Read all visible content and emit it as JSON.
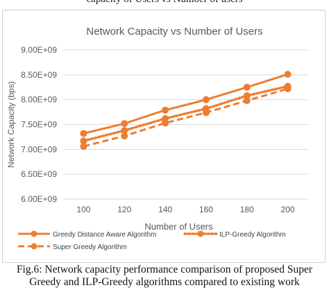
{
  "header_fragment": "capacity of Users vs Number of users",
  "caption": {
    "line1": "Fig.6: Network capacity performance comparison of proposed Super",
    "line2": "Greedy and  ILP-Greedy algorithms compared to existing work"
  },
  "chart_data": {
    "type": "line",
    "title": "Network Capacity vs Number of Users",
    "xlabel": "Number of Users",
    "ylabel": "Network Capacity (bps)",
    "x": [
      100,
      120,
      140,
      160,
      180,
      200
    ],
    "ylim": [
      6000000000,
      9000000000
    ],
    "yticks": [
      6000000000,
      6500000000,
      7000000000,
      7500000000,
      8000000000,
      8500000000,
      9000000000
    ],
    "ytick_labels": [
      "6.00E+09",
      "6.50E+09",
      "7.00E+09",
      "7.50E+09",
      "8.00E+09",
      "8.50E+09",
      "9.00E+09"
    ],
    "grid": true,
    "legend_position": "bottom",
    "series": [
      {
        "name": "Greedy Distance Aware Algorithm",
        "style": "solid",
        "color": "#ED7D31",
        "values": [
          7320000000,
          7520000000,
          7790000000,
          8000000000,
          8250000000,
          8510000000
        ]
      },
      {
        "name": "ILP-Greedy Algorithm",
        "style": "dotted",
        "color": "#ED7D31",
        "values": [
          7170000000,
          7380000000,
          7620000000,
          7820000000,
          8080000000,
          8270000000
        ]
      },
      {
        "name": "Super Greedy Algorithm",
        "style": "dashed",
        "color": "#ED7D31",
        "values": [
          7060000000,
          7270000000,
          7530000000,
          7740000000,
          7980000000,
          8220000000
        ]
      }
    ]
  }
}
